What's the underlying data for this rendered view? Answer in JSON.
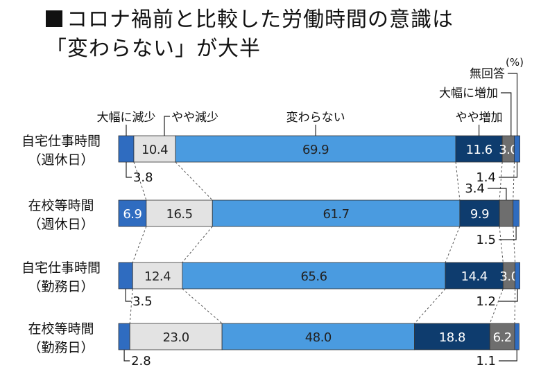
{
  "title": {
    "line1": "コロナ禍前と比較した労働時間の意識は",
    "line2": "「変わらない」が大半"
  },
  "chart_data": {
    "type": "bar",
    "orientation": "horizontal",
    "stacked": true,
    "normalized": true,
    "unit": "(%)",
    "xlim": [
      0,
      100
    ],
    "categories": [
      [
        "自宅仕事時間",
        "（週休日）"
      ],
      [
        "在校等時間",
        "（週休日）"
      ],
      [
        "自宅仕事時間",
        "（勤務日）"
      ],
      [
        "在校等時間",
        "（勤務日）"
      ]
    ],
    "series": [
      {
        "name": "大幅に減少",
        "values": [
          3.8,
          6.9,
          3.5,
          2.8
        ],
        "color": "#2f6cc0"
      },
      {
        "name": "やや減少",
        "values": [
          10.4,
          16.5,
          12.4,
          23.0
        ],
        "color": "#e3e3e3"
      },
      {
        "name": "変わらない",
        "values": [
          69.9,
          61.7,
          65.6,
          48.0
        ],
        "color": "#4a9be0"
      },
      {
        "name": "やや増加",
        "values": [
          11.6,
          9.9,
          14.4,
          18.8
        ],
        "color": "#0e3c6e"
      },
      {
        "name": "大幅に増加",
        "values": [
          3.0,
          3.4,
          3.0,
          6.2
        ],
        "color": "#6e6e6e"
      },
      {
        "name": "無回答",
        "values": [
          1.4,
          1.5,
          1.2,
          1.1
        ],
        "color": "#2f6cc0"
      }
    ],
    "legend": "callouts above the top bar"
  }
}
